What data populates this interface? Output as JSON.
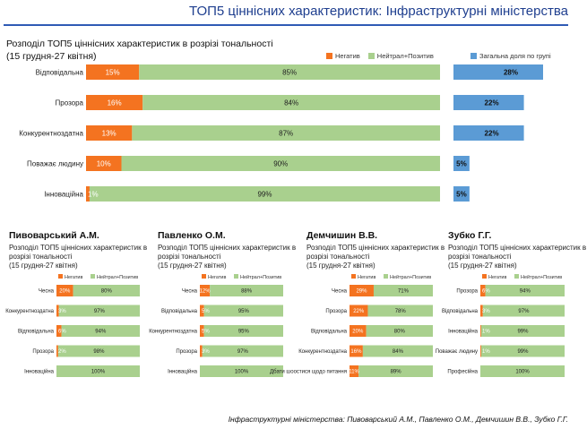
{
  "header": {
    "title": "ТОП5 ціннісних характеристик: Інфраструктурні міністерства"
  },
  "colors": {
    "negative": "#f47320",
    "neutral": "#a9d08e",
    "share": "#5b9bd5",
    "title": "#1f3f8f"
  },
  "footer": {
    "note": "Інфраструктурні міністерства: Пивоварський А.М., Павленко О.М., Демчишин В.В., Зубко Г.Г."
  },
  "chart_data": [
    {
      "type": "bar",
      "orientation": "horizontal",
      "stacked": true,
      "title": "Розподіл ТОП5 ціннісних характеристик в розрізі тональності",
      "subtitle": "(15 грудня-27 квітня)",
      "legend": [
        "Негатив",
        "Нейтрал+Позитив"
      ],
      "categories": [
        "Відповідальна",
        "Прозора",
        "Конкурентноздатна",
        "Поважає людину",
        "Інноваційна"
      ],
      "series": [
        {
          "name": "Негатив",
          "values": [
            15,
            16,
            13,
            10,
            1
          ],
          "labels": [
            "15%",
            "16%",
            "13%",
            "10%",
            "1%"
          ]
        },
        {
          "name": "Нейтрал+Позитив",
          "values": [
            85,
            84,
            87,
            90,
            99
          ],
          "labels": [
            "85%",
            "84%",
            "87%",
            "90%",
            "99%"
          ]
        }
      ],
      "xlim": [
        0,
        100
      ]
    },
    {
      "type": "bar",
      "orientation": "horizontal",
      "title": "Загальна доля по групі",
      "categories": [
        "Відповідальна",
        "Прозора",
        "Конкурентноздатна",
        "Поважає людину",
        "Інноваційна"
      ],
      "values": [
        28,
        22,
        22,
        5,
        5
      ],
      "labels": [
        "28%",
        "22%",
        "22%",
        "5%",
        "5%"
      ],
      "xlim": [
        0,
        28
      ]
    },
    {
      "type": "bar",
      "orientation": "horizontal",
      "stacked": true,
      "name": "Пивоварський А.М.",
      "subtitle": "Розподіл ТОП5 ціннісних характеристик в розрізі тональності",
      "period": "(15 грудня-27 квітня)",
      "legend": [
        "Негатив",
        "Нейтрал+Позитив"
      ],
      "categories": [
        "Чесна",
        "Конкурентноздатна",
        "Відповідальна",
        "Прозора",
        "Інноваційна"
      ],
      "series": [
        {
          "name": "Негатив",
          "values": [
            20,
            3,
            6,
            2,
            0
          ],
          "labels": [
            "20%",
            "3%",
            "6%",
            "2%",
            ""
          ]
        },
        {
          "name": "Нейтрал+Позитив",
          "values": [
            80,
            97,
            94,
            98,
            100
          ],
          "labels": [
            "80%",
            "97%",
            "94%",
            "98%",
            "100%"
          ]
        }
      ]
    },
    {
      "type": "bar",
      "orientation": "horizontal",
      "stacked": true,
      "name": "Павленко О.М.",
      "subtitle": "Розподіл ТОП5 ціннісних характеристик в розрізі тональності",
      "period": "(15 грудня-27 квітня)",
      "legend": [
        "Негатив",
        "Нейтрал+Позитив"
      ],
      "categories": [
        "Чесна",
        "Відповідальна",
        "Конкурентноздатна",
        "Прозора",
        "Інноваційна"
      ],
      "series": [
        {
          "name": "Негатив",
          "values": [
            12,
            5,
            5,
            3,
            0
          ],
          "labels": [
            "12%",
            "5%",
            "5%",
            "3%",
            ""
          ]
        },
        {
          "name": "Нейтрал+Позитив",
          "values": [
            88,
            95,
            95,
            97,
            100
          ],
          "labels": [
            "88%",
            "95%",
            "95%",
            "97%",
            "100%"
          ]
        }
      ]
    },
    {
      "type": "bar",
      "orientation": "horizontal",
      "stacked": true,
      "name": "Демчишин В.В.",
      "subtitle": "Розподіл ТОП5 ціннісних характеристик в розрізі тональності",
      "period": "(15 грудня-27 квітня)",
      "legend": [
        "Негатив",
        "Нейтрал+Позитив"
      ],
      "categories": [
        "Чесна",
        "Прозора",
        "Відповідальна",
        "Конкурентноздатна",
        "Дбати шоостися щодо питання"
      ],
      "series": [
        {
          "name": "Негатив",
          "values": [
            29,
            22,
            20,
            16,
            11
          ],
          "labels": [
            "29%",
            "22%",
            "20%",
            "16%",
            "11%"
          ]
        },
        {
          "name": "Нейтрал+Позитив",
          "values": [
            71,
            78,
            80,
            84,
            89
          ],
          "labels": [
            "71%",
            "78%",
            "80%",
            "84%",
            "89%"
          ]
        }
      ]
    },
    {
      "type": "bar",
      "orientation": "horizontal",
      "stacked": true,
      "name": "Зубко Г.Г.",
      "subtitle": "Розподіл ТОП5 ціннісних характеристик в розрізі тональності",
      "period": "(15 грудня-27 квітня)",
      "legend": [
        "Негатив",
        "Нейтрал+Позитив"
      ],
      "categories": [
        "Прозора",
        "Відповідальна",
        "Інноваційна",
        "Поважає людину",
        "Професійна"
      ],
      "series": [
        {
          "name": "Негатив",
          "values": [
            6,
            3,
            1,
            1,
            0
          ],
          "labels": [
            "6%",
            "3%",
            "1%",
            "1%",
            ""
          ]
        },
        {
          "name": "Нейтрал+Позитив",
          "values": [
            94,
            97,
            99,
            99,
            100
          ],
          "labels": [
            "94%",
            "97%",
            "99%",
            "99%",
            "100%"
          ]
        }
      ]
    }
  ]
}
